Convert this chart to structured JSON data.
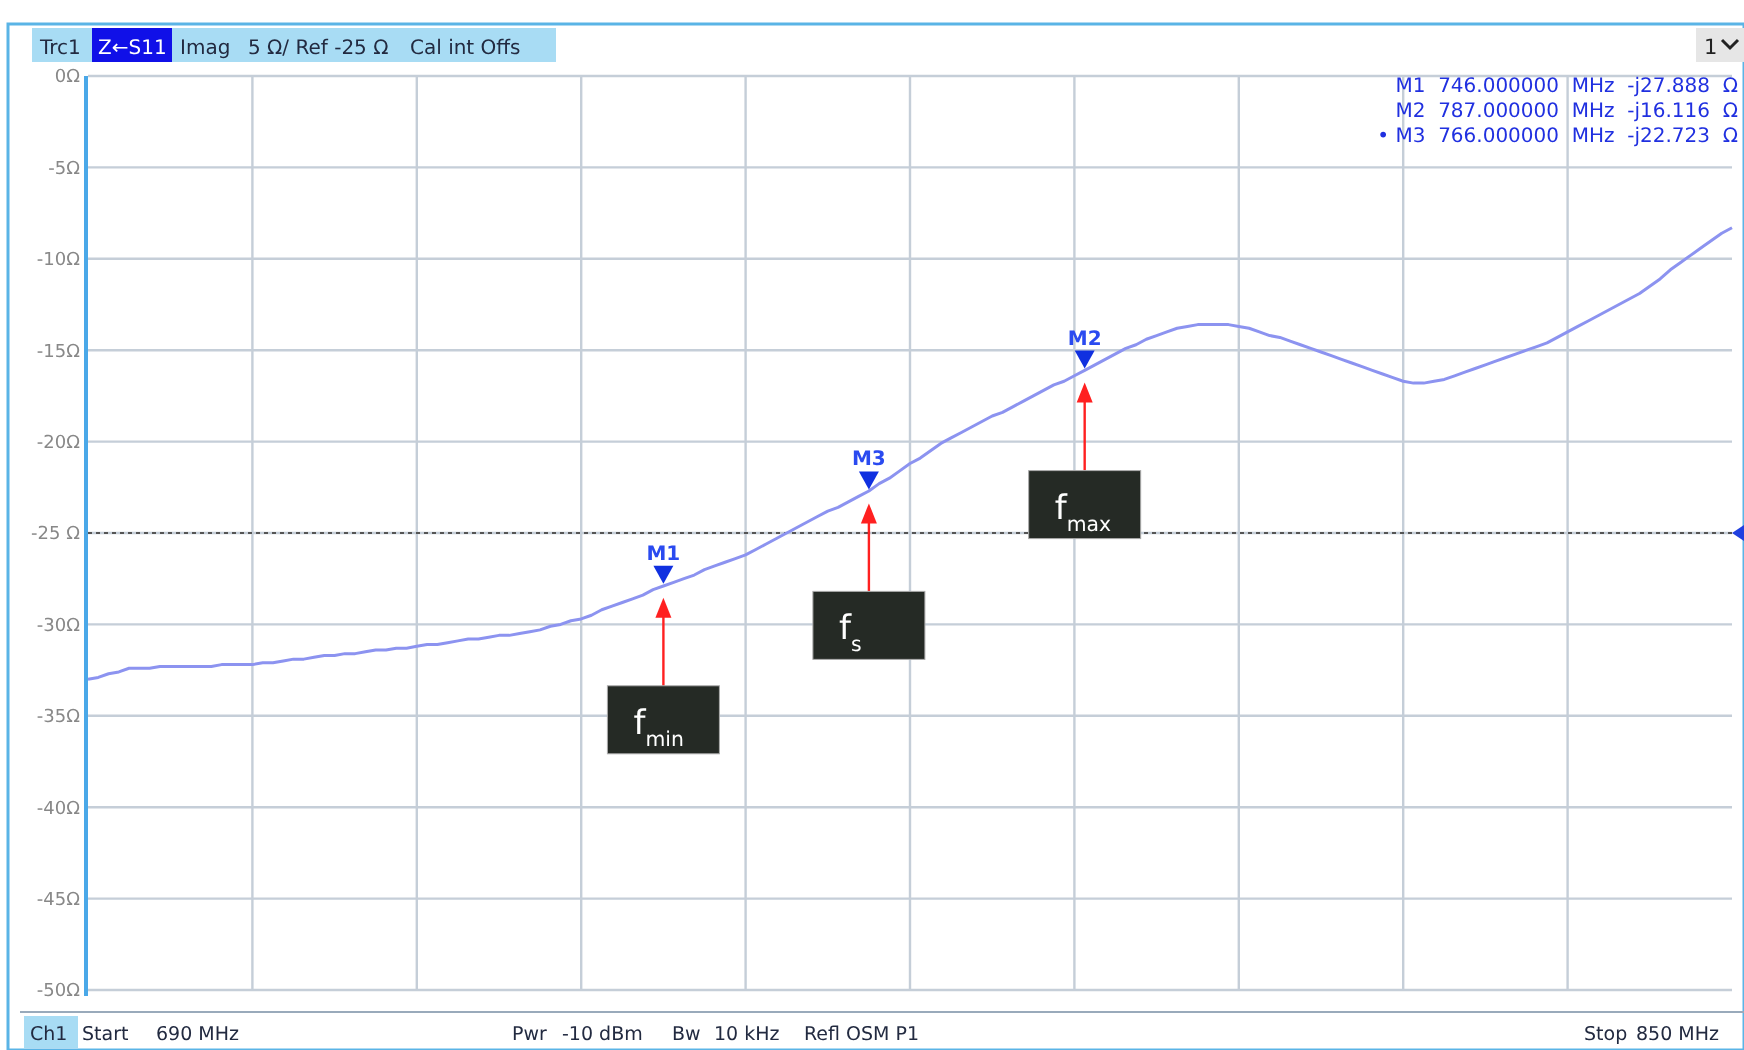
{
  "chart_data": {
    "type": "line",
    "categories": [
      null,
      null,
      null,
      null,
      null,
      null,
      null,
      null,
      null,
      null,
      null,
      null,
      null,
      null,
      null,
      null,
      null,
      null,
      null,
      null,
      null,
      null,
      null,
      null,
      null,
      null,
      null,
      null,
      null,
      null,
      null,
      null,
      null,
      null,
      null,
      null,
      null,
      null,
      null,
      null,
      null,
      null,
      null,
      null,
      null,
      null,
      null,
      null,
      null,
      null,
      null,
      null,
      null,
      null,
      null,
      null,
      null,
      null,
      null,
      null,
      null,
      null,
      null,
      null,
      null,
      null,
      null,
      null,
      null,
      null,
      null,
      null,
      null,
      null,
      null,
      null,
      null,
      null,
      null,
      null,
      null,
      null,
      null,
      null,
      null,
      null,
      null,
      null,
      null,
      null,
      null,
      null,
      null,
      null,
      null,
      null,
      null,
      null,
      null,
      null,
      null,
      null,
      null,
      null,
      null,
      null,
      null,
      null,
      null,
      null,
      null,
      null,
      null,
      null,
      null,
      null,
      null,
      null,
      null,
      null,
      null,
      null,
      null,
      null,
      null,
      null,
      null,
      null,
      null,
      null,
      null,
      null,
      null,
      null,
      null,
      null,
      null,
      null,
      null,
      null,
      null,
      null,
      null,
      null,
      null,
      null,
      null,
      null,
      null,
      null,
      null,
      null,
      null,
      null,
      null,
      null,
      null,
      null,
      null,
      null,
      null
    ],
    "series": [
      {
        "color": "#8c93f0",
        "values": [
          -33.0,
          -32.9,
          -32.7,
          -32.6,
          -32.4,
          -32.4,
          -32.4,
          -32.3,
          -32.3,
          -32.3,
          -32.3,
          -32.3,
          -32.3,
          -32.2,
          -32.2,
          -32.2,
          -32.2,
          -32.1,
          -32.1,
          -32.0,
          -31.9,
          -31.9,
          -31.8,
          -31.7,
          -31.7,
          -31.6,
          -31.6,
          -31.5,
          -31.4,
          -31.4,
          -31.3,
          -31.3,
          -31.2,
          -31.1,
          -31.1,
          -31.0,
          -30.9,
          -30.8,
          -30.8,
          -30.7,
          -30.6,
          -30.6,
          -30.5,
          -30.4,
          -30.3,
          -30.1,
          -30.0,
          -29.8,
          -29.7,
          -29.5,
          -29.2,
          -29.0,
          -28.8,
          -28.6,
          -28.4,
          -28.1,
          -27.9,
          -27.7,
          -27.5,
          -27.3,
          -27.0,
          -26.8,
          -26.6,
          -26.4,
          -26.2,
          -25.9,
          -25.6,
          -25.3,
          -25.0,
          -24.7,
          -24.4,
          -24.1,
          -23.8,
          -23.6,
          -23.3,
          -23.0,
          -22.7,
          -22.3,
          -22.0,
          -21.6,
          -21.2,
          -20.9,
          -20.5,
          -20.1,
          -19.8,
          -19.5,
          -19.2,
          -18.9,
          -18.6,
          -18.4,
          -18.1,
          -17.8,
          -17.5,
          -17.2,
          -16.9,
          -16.7,
          -16.4,
          -16.1,
          -15.8,
          -15.5,
          -15.2,
          -14.9,
          -14.7,
          -14.4,
          -14.2,
          -14.0,
          -13.8,
          -13.7,
          -13.6,
          -13.6,
          -13.6,
          -13.6,
          -13.7,
          -13.8,
          -14.0,
          -14.2,
          -14.3,
          -14.5,
          -14.7,
          -14.9,
          -15.1,
          -15.3,
          -15.5,
          -15.7,
          -15.9,
          -16.1,
          -16.3,
          -16.5,
          -16.7,
          -16.8,
          -16.8,
          -16.7,
          -16.6,
          -16.4,
          -16.2,
          -16.0,
          -15.8,
          -15.6,
          -15.4,
          -15.2,
          -15.0,
          -14.8,
          -14.6,
          -14.3,
          -14.0,
          -13.7,
          -13.4,
          -13.1,
          -12.8,
          -12.5,
          -12.2,
          -11.9,
          -11.5,
          -11.1,
          -10.6,
          -10.2,
          -9.8,
          -9.4,
          -9.0,
          -8.6,
          -8.3
        ]
      }
    ],
    "ylim": [
      -50,
      0
    ],
    "yticks": [
      {
        "value": 0,
        "label": "0Ω"
      },
      {
        "value": -5,
        "label": "-5Ω"
      },
      {
        "value": -10,
        "label": "-10Ω"
      },
      {
        "value": -15,
        "label": "-15Ω"
      },
      {
        "value": -20,
        "label": "-20Ω"
      },
      {
        "value": -25,
        "label": "-25 Ω"
      },
      {
        "value": -30,
        "label": "-30Ω"
      },
      {
        "value": -35,
        "label": "-35Ω"
      },
      {
        "value": -40,
        "label": "-40Ω"
      },
      {
        "value": -45,
        "label": "-45Ω"
      },
      {
        "value": -50,
        "label": "-50Ω"
      }
    ],
    "tick_labels": "y",
    "grid": true,
    "ref_lines": [
      {
        "axis": "y",
        "value": -25,
        "color": "#555555",
        "line_style": "dotted"
      }
    ],
    "annotations": [
      {
        "text": "M1",
        "y": -27.888
      },
      {
        "text": "M3",
        "y": -22.723
      },
      {
        "text": "M2",
        "y": -16.116
      },
      "f$_{min}$",
      "f$_{s}$",
      "f$_{max}$",
      "M1  746.000000  MHz  -j27.888  Ω",
      "M2  787.000000  MHz  -j16.116  Ω",
      "• M3  766.000000  MHz  -j22.723  Ω",
      "Trc1",
      "Z←S11",
      "Imag",
      "5 Ω/ Ref -25 Ω",
      "Cal int Offs",
      "1",
      "Ch1",
      "Start",
      "690 MHz",
      "Pwr",
      "-10 dBm",
      "Bw",
      "10 kHz",
      "Refl OSM P1",
      "Stop",
      "850 MHz"
    ]
  }
}
